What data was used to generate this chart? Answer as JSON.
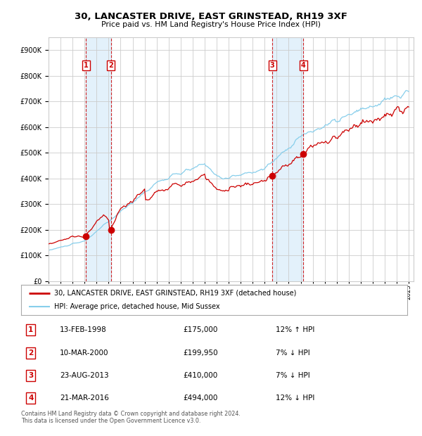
{
  "title": "30, LANCASTER DRIVE, EAST GRINSTEAD, RH19 3XF",
  "subtitle": "Price paid vs. HM Land Registry's House Price Index (HPI)",
  "ylim": [
    0,
    950000
  ],
  "x_start_year": 1995,
  "x_end_year": 2025,
  "sale_points": [
    {
      "date_str": "13-FEB-1998",
      "date_num": 1998.12,
      "price": 175000,
      "label": "1"
    },
    {
      "date_str": "10-MAR-2000",
      "date_num": 2000.19,
      "price": 199950,
      "label": "2"
    },
    {
      "date_str": "23-AUG-2013",
      "date_num": 2013.64,
      "price": 410000,
      "label": "3"
    },
    {
      "date_str": "21-MAR-2016",
      "date_num": 2016.22,
      "price": 494000,
      "label": "4"
    }
  ],
  "legend_red_label": "30, LANCASTER DRIVE, EAST GRINSTEAD, RH19 3XF (detached house)",
  "legend_blue_label": "HPI: Average price, detached house, Mid Sussex",
  "table_rows": [
    {
      "num": "1",
      "date": "13-FEB-1998",
      "price": "£175,000",
      "pct": "12% ↑ HPI"
    },
    {
      "num": "2",
      "date": "10-MAR-2000",
      "price": "£199,950",
      "pct": "7% ↓ HPI"
    },
    {
      "num": "3",
      "date": "23-AUG-2013",
      "price": "£410,000",
      "pct": "7% ↓ HPI"
    },
    {
      "num": "4",
      "date": "21-MAR-2016",
      "price": "£494,000",
      "pct": "12% ↓ HPI"
    }
  ],
  "footnote": "Contains HM Land Registry data © Crown copyright and database right 2024.\nThis data is licensed under the Open Government Licence v3.0.",
  "red_color": "#cc0000",
  "blue_color": "#87CEEB",
  "grid_color": "#cccccc",
  "shade_color": "#dceefa"
}
